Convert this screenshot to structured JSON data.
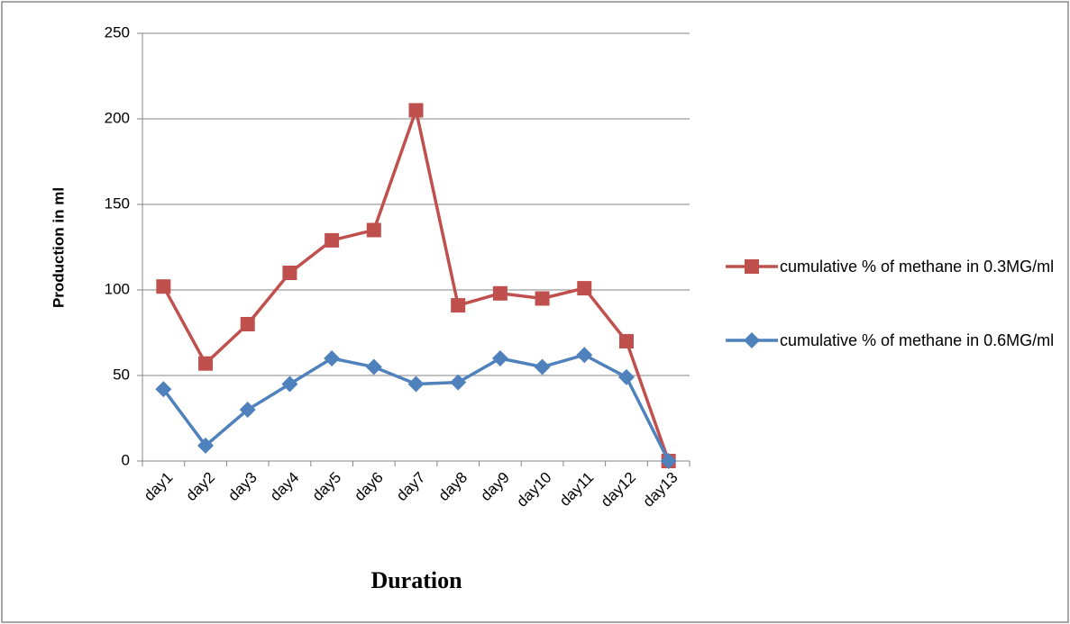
{
  "chart_data": {
    "type": "line",
    "x_label": "Duration",
    "y_label": "Production in ml",
    "categories": [
      "day1",
      "day2",
      "day3",
      "day4",
      "day5",
      "day6",
      "day7",
      "day8",
      "day9",
      "day10",
      "day11",
      "day12",
      "day13"
    ],
    "series": [
      {
        "name": "cumulative % of methane in 0.3MG/ml",
        "color": "#c0504d",
        "marker": "square",
        "values": [
          102,
          57,
          80,
          110,
          129,
          135,
          205,
          91,
          98,
          95,
          101,
          70,
          0
        ]
      },
      {
        "name": "cumulative % of methane in 0.6MG/ml",
        "color": "#4f81bd",
        "marker": "diamond",
        "values": [
          42,
          9,
          30,
          45,
          60,
          55,
          45,
          46,
          60,
          55,
          62,
          49,
          0
        ]
      }
    ],
    "ylim": [
      0,
      250
    ],
    "yticks": [
      0,
      50,
      100,
      150,
      200,
      250
    ],
    "grid": true,
    "legend": "right"
  }
}
